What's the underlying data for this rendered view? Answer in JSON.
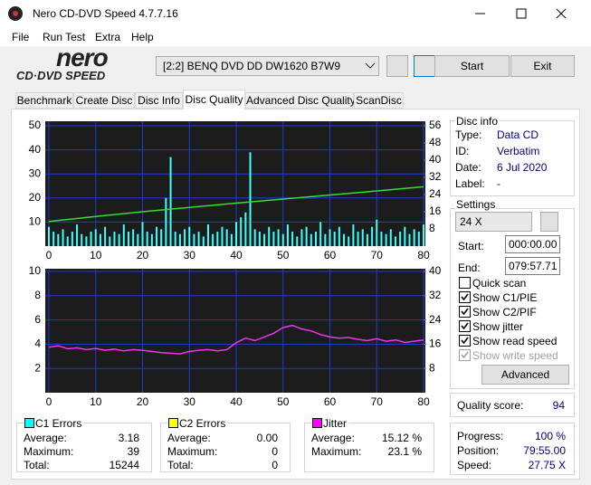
{
  "window_title": "Nero CD-DVD Speed 4.7.7.16",
  "menu": [
    "File",
    "Run Test",
    "Extra",
    "Help"
  ],
  "logo": {
    "brand": "nero",
    "product": "CD·DVD SPEED"
  },
  "drive": "[2:2]  BENQ DVD DD DW1620 B7W9",
  "buttons": {
    "start": "Start",
    "exit": "Exit"
  },
  "tabs": [
    "Benchmark",
    "Create Disc",
    "Disc Info",
    "Disc Quality",
    "Advanced Disc Quality",
    "ScanDisc"
  ],
  "disc_info": {
    "title": "Disc info",
    "rows": [
      {
        "label": "Type:",
        "value": "Data CD"
      },
      {
        "label": "ID:",
        "value": "Verbatim"
      },
      {
        "label": "Date:",
        "value": "6 Jul 2020"
      },
      {
        "label": "Label:",
        "value": "-"
      }
    ]
  },
  "settings": {
    "title": "Settings",
    "speed": "24 X",
    "start_label": "Start:",
    "start": "000:00.00",
    "end_label": "End:",
    "end": "079:57.71",
    "checks": [
      {
        "label": "Quick scan",
        "checked": false,
        "enabled": true
      },
      {
        "label": "Show C1/PIE",
        "checked": true,
        "enabled": true
      },
      {
        "label": "Show C2/PIF",
        "checked": true,
        "enabled": true
      },
      {
        "label": "Show jitter",
        "checked": true,
        "enabled": true
      },
      {
        "label": "Show read speed",
        "checked": true,
        "enabled": true
      },
      {
        "label": "Show write speed",
        "checked": true,
        "enabled": false
      }
    ],
    "advanced": "Advanced"
  },
  "quality": {
    "label": "Quality score:",
    "value": 94
  },
  "progress": [
    {
      "label": "Progress:",
      "value": "100 %"
    },
    {
      "label": "Position:",
      "value": "79:55.00"
    },
    {
      "label": "Speed:",
      "value": "27.75 X"
    }
  ],
  "stats": [
    {
      "title": "C1 Errors",
      "color": "#00ffff",
      "rows": [
        {
          "label": "Average:",
          "value": "3.18"
        },
        {
          "label": "Maximum:",
          "value": "39"
        },
        {
          "label": "Total:",
          "value": "15244"
        }
      ]
    },
    {
      "title": "C2 Errors",
      "color": "#ffff00",
      "rows": [
        {
          "label": "Average:",
          "value": "0.00"
        },
        {
          "label": "Maximum:",
          "value": "0"
        },
        {
          "label": "Total:",
          "value": "0"
        }
      ]
    },
    {
      "title": "Jitter",
      "color": "#ff00ff",
      "rows": [
        {
          "label": "Average:",
          "value": "15.12 %"
        },
        {
          "label": "Maximum:",
          "value": "23.1 %"
        }
      ]
    }
  ],
  "chart_data": [
    {
      "type": "bar",
      "grid": true,
      "xlim": [
        0,
        80
      ],
      "xticks": [
        0,
        10,
        20,
        30,
        40,
        50,
        60,
        70,
        80
      ],
      "ylim": [
        0,
        50
      ],
      "yticks": [
        10,
        20,
        30,
        40,
        50
      ],
      "y2lim": [
        0,
        56
      ],
      "y2ticks": [
        8,
        16,
        24,
        32,
        40,
        48,
        56
      ],
      "series": [
        {
          "color": "#40ffff",
          "x": [
            0,
            1,
            2,
            3,
            4,
            5,
            6,
            7,
            8,
            9,
            10,
            11,
            12,
            13,
            14,
            15,
            16,
            17,
            18,
            19,
            20,
            21,
            22,
            23,
            24,
            25,
            26,
            27,
            28,
            29,
            30,
            31,
            32,
            33,
            34,
            35,
            36,
            37,
            38,
            39,
            40,
            41,
            42,
            43,
            44,
            45,
            46,
            47,
            48,
            49,
            50,
            51,
            52,
            53,
            54,
            55,
            56,
            57,
            58,
            59,
            60,
            61,
            62,
            63,
            64,
            65,
            66,
            67,
            68,
            69,
            70,
            71,
            72,
            73,
            74,
            75,
            76,
            77,
            78,
            79,
            80
          ],
          "values": [
            8,
            6,
            5,
            7,
            4,
            6,
            9,
            5,
            4,
            6,
            7,
            5,
            8,
            4,
            6,
            5,
            9,
            6,
            7,
            5,
            10,
            6,
            5,
            8,
            7,
            20,
            37,
            6,
            5,
            7,
            8,
            5,
            6,
            4,
            9,
            5,
            6,
            8,
            7,
            5,
            10,
            12,
            14,
            39,
            7,
            6,
            5,
            8,
            6,
            7,
            5,
            9,
            6,
            4,
            7,
            8,
            5,
            6,
            10,
            5,
            7,
            6,
            8,
            5,
            4,
            9,
            6,
            7,
            5,
            8,
            11,
            6,
            5,
            7,
            4,
            6,
            8,
            5,
            7,
            6,
            9
          ]
        },
        {
          "type": "line",
          "axis": "y2",
          "color": "#33dd33",
          "x": [
            0,
            10,
            20,
            30,
            40,
            50,
            60,
            70,
            80
          ],
          "values": [
            11.5,
            13.8,
            16,
            18,
            20,
            21.9,
            23.8,
            25.7,
            27.6
          ]
        }
      ]
    },
    {
      "type": "line",
      "grid": true,
      "xlim": [
        0,
        80
      ],
      "xticks": [
        0,
        10,
        20,
        30,
        40,
        50,
        60,
        70,
        80
      ],
      "ylim": [
        0,
        10
      ],
      "yticks": [
        2,
        4,
        6,
        8,
        10
      ],
      "y2lim": [
        0,
        40
      ],
      "y2ticks": [
        8,
        16,
        24,
        32,
        40
      ],
      "series": [
        {
          "axis": "y2",
          "color": "#ee33ee",
          "x": [
            0,
            2,
            4,
            6,
            8,
            10,
            12,
            14,
            16,
            18,
            20,
            22,
            24,
            26,
            28,
            30,
            32,
            34,
            36,
            38,
            40,
            42,
            44,
            46,
            48,
            50,
            52,
            54,
            56,
            58,
            60,
            62,
            64,
            66,
            68,
            70,
            72,
            74,
            76,
            78,
            80
          ],
          "values": [
            15,
            15.5,
            14.5,
            14.8,
            14.2,
            14.6,
            14,
            14.4,
            13.8,
            14.2,
            14,
            13.6,
            13.2,
            13,
            12.8,
            13.6,
            14,
            14.2,
            13.8,
            14.2,
            16.5,
            18,
            17.2,
            18.4,
            19.6,
            21.5,
            22.2,
            21,
            20.4,
            19.2,
            18.4,
            18,
            18.2,
            17.6,
            17.2,
            17.8,
            17,
            17.4,
            16.6,
            17,
            17.4
          ]
        }
      ]
    }
  ]
}
